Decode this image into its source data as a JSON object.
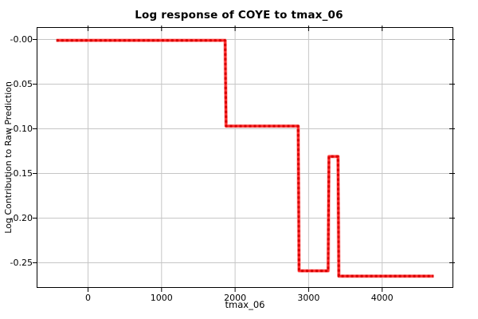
{
  "chart_data": {
    "type": "line",
    "title": "Log response of COYE to tmax_06",
    "xlabel": "tmax_06",
    "ylabel": "Log Contribution to Raw Prediction",
    "line_style": "red dashed step curve",
    "line_color": "#ff0000",
    "line_dash_color": "#d40000",
    "grid": true,
    "grid_color": "#c6c6c6",
    "legend": "none",
    "xlim": [
      -699,
      4968
    ],
    "ylim": [
      -0.2781,
      0.0138
    ],
    "x_tick_values": [
      0,
      1000,
      2000,
      3000,
      4000
    ],
    "x_tick_labels": [
      "0",
      "1000",
      "2000",
      "3000",
      "4000"
    ],
    "y_tick_values": [
      0.0,
      -0.05,
      -0.1,
      -0.15,
      -0.2,
      -0.25
    ],
    "y_tick_labels": [
      "-0.00",
      "-0.05",
      "-0.10",
      "-0.15",
      "-0.20",
      "-0.25"
    ],
    "series": [
      {
        "name": "COYE log response",
        "x": [
          -430,
          1865,
          1878,
          2858,
          2870,
          3266,
          3277,
          3400,
          3411,
          4700
        ],
        "y": [
          -0.001,
          -0.001,
          -0.097,
          -0.097,
          -0.259,
          -0.259,
          -0.131,
          -0.131,
          -0.265,
          -0.265
        ]
      }
    ]
  }
}
